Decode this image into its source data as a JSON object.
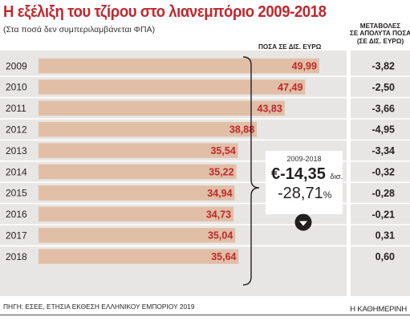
{
  "title": "Η εξέλιξη του τζίρου στο λιανεμπόριο 2009-2018",
  "subtitle": "(Στα ποσά δεν συμπεριλαμβάνεται ΦΠΑ)",
  "headers": {
    "amounts": "ΠΟΣΑ ΣΕ ΔΙΣ. ΕΥΡΩ",
    "changes": [
      "ΜΕΤΑΒΟΛΕΣ",
      "ΣΕ ΑΠΟΛΥΤΑ ΠΟΣΑ",
      "(ΣΕ ΔΙΣ. ΕΥΡΩ)"
    ]
  },
  "callout": {
    "period": "2009-2018",
    "amount": "€-14,35",
    "unit": "δισ.",
    "percent": "-28,71",
    "percent_sign": "%",
    "icon": "down-arrow-icon"
  },
  "source": "ΠΗΓΗ: ΕΣΕΕ, ΕΤΗΣΙΑ ΕΚΘΕΣΗ ΕΛΛΗΝΙΚΟΥ ΕΜΠΟΡΙΟΥ 2019",
  "publisher": "Η ΚΑΘΗΜΕΡΙΝΗ",
  "colors": {
    "title": "#c1272d",
    "bar": "#e0bfa6",
    "value_label": "#c1272d",
    "panel": "#e8e6e4",
    "divider": "#ffffff",
    "icon": "#231f20"
  },
  "chart_data": {
    "type": "bar",
    "orientation": "horizontal",
    "categories": [
      "2009",
      "2010",
      "2011",
      "2012",
      "2013",
      "2014",
      "2015",
      "2016",
      "2017",
      "2018"
    ],
    "series": [
      {
        "values": [
          49.99,
          47.49,
          43.83,
          38.88,
          35.54,
          35.22,
          34.94,
          34.73,
          35.04,
          35.64
        ],
        "labels": [
          "49,99",
          "47,49",
          "43,83",
          "38,88",
          "35,54",
          "35,22",
          "34,94",
          "34,73",
          "35,04",
          "35,64"
        ]
      }
    ],
    "changes": {
      "values": [
        -3.82,
        -2.5,
        -3.66,
        -4.95,
        -3.34,
        -0.32,
        -0.28,
        -0.21,
        0.31,
        0.6
      ],
      "labels": [
        "-3,82",
        "-2,50",
        "-3,66",
        "-4,95",
        "-3,34",
        "-0,32",
        "-0,28",
        "-0,21",
        "0,31",
        "0,60"
      ]
    },
    "xlim": [
      0,
      50
    ],
    "grid": false,
    "legend": "none"
  }
}
